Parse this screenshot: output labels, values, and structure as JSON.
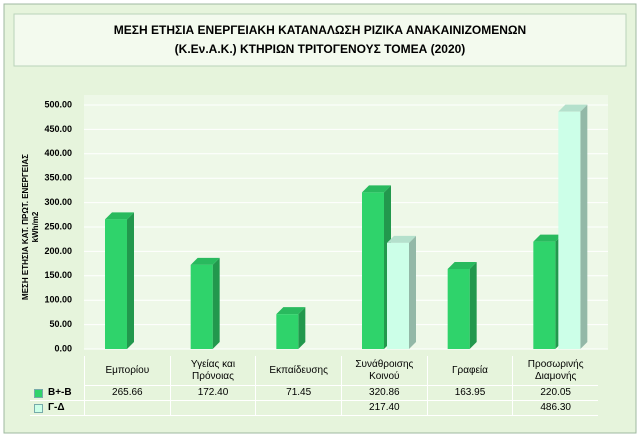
{
  "chart_data": {
    "type": "bar3d",
    "title": [
      "ΜΕΣΗ ΕΤΗΣΙΑ ΕΝΕΡΓΕΙΑΚΗ ΚΑΤΑΝΑΛΩΣΗ ΡΙΖΙΚΑ ΑΝΑΚΑΙΝΙΖΟΜΕΝΩΝ",
      "(Κ.Εν.Α.Κ.) ΚΤΗΡΙΩΝ ΤΡΙΤΟΓΕΝΟΥΣ ΤΟΜΕΑ (2020)"
    ],
    "y_label": [
      "ΜΕΣΗ ΕΤΗΣΙΑ ΚΑΤ. ΠΡΩΤ. ΕΝΕΡΓΕΙΑΣ",
      "kWh/m2"
    ],
    "categories": [
      "Εμπορίου",
      "Υγείας και Πρόνοιας",
      "Εκπαίδευσης",
      "Συνάθροισης Κοινού",
      "Γραφεία",
      "Προσωρινής Διαμονής"
    ],
    "series": [
      {
        "name": "Β+-Β",
        "color": "#2fd36b",
        "values": [
          265.66,
          172.4,
          71.45,
          320.86,
          163.95,
          220.05
        ],
        "value_labels": [
          "265.66",
          "172.40",
          "71.45",
          "320.86",
          "163.95",
          "220.05"
        ]
      },
      {
        "name": "Γ-Δ",
        "color": "#ccffe8",
        "values": [
          null,
          null,
          null,
          217.4,
          null,
          486.3
        ],
        "value_labels": [
          null,
          null,
          null,
          "217.40",
          null,
          "486.30"
        ]
      }
    ],
    "ylim": [
      0,
      500
    ],
    "yticks": [
      {
        "value": 0,
        "label": "0.00"
      },
      {
        "value": 50,
        "label": "50.00"
      },
      {
        "value": 100,
        "label": "100.00"
      },
      {
        "value": 150,
        "label": "150.00"
      },
      {
        "value": 200,
        "label": "200.00"
      },
      {
        "value": 250,
        "label": "250.00"
      },
      {
        "value": 300,
        "label": "300.00"
      },
      {
        "value": 350,
        "label": "350.00"
      },
      {
        "value": 400,
        "label": "400.00"
      },
      {
        "value": 450,
        "label": "450.00"
      },
      {
        "value": 500,
        "label": "500.00"
      }
    ],
    "grid": true
  }
}
